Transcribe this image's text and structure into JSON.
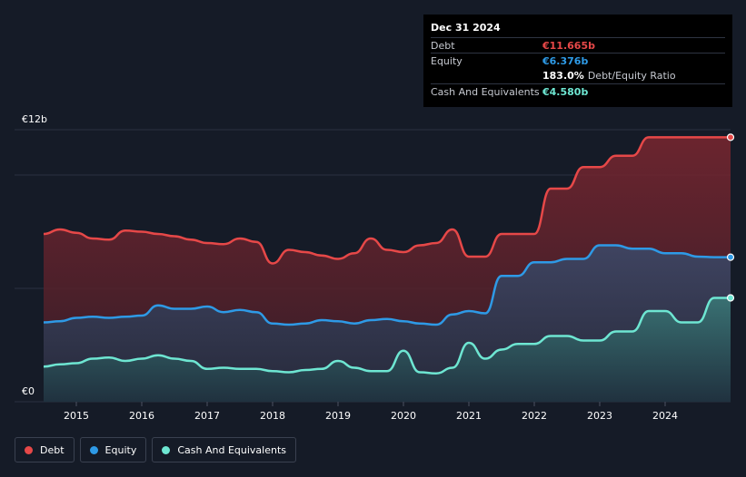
{
  "tooltip": {
    "date": "Dec 31 2024",
    "rows": [
      {
        "label": "Debt",
        "value": "€11.665b",
        "color": "#e64848"
      },
      {
        "label": "Equity",
        "value": "€6.376b",
        "color": "#2e9ae6"
      },
      {
        "label": "",
        "value": "183.0%",
        "suffix": "Debt/Equity Ratio",
        "color": "#ffffff"
      },
      {
        "label": "Cash And Equivalents",
        "value": "€4.580b",
        "color": "#6ee6d2"
      }
    ]
  },
  "legend": [
    {
      "label": "Debt",
      "color": "#e64848"
    },
    {
      "label": "Equity",
      "color": "#2e9ae6"
    },
    {
      "label": "Cash And Equivalents",
      "color": "#6ee6d2"
    }
  ],
  "chart_data": {
    "type": "area",
    "y_axis_labels": [
      "€12b",
      "€0"
    ],
    "ylim": [
      0,
      12
    ],
    "xlim": [
      2014.5,
      2025.0
    ],
    "x_ticks": [
      "2015",
      "2016",
      "2017",
      "2018",
      "2019",
      "2020",
      "2021",
      "2022",
      "2023",
      "2024"
    ],
    "grid": true,
    "legend_position": "bottom-left",
    "series": [
      {
        "name": "Debt",
        "color": "#e64848",
        "x": [
          2014.5,
          2014.75,
          2015.0,
          2015.25,
          2015.5,
          2015.75,
          2016.0,
          2016.25,
          2016.5,
          2016.75,
          2017.0,
          2017.25,
          2017.5,
          2017.75,
          2018.0,
          2018.25,
          2018.5,
          2018.75,
          2019.0,
          2019.25,
          2019.5,
          2019.75,
          2020.0,
          2020.25,
          2020.5,
          2020.75,
          2021.0,
          2021.25,
          2021.5,
          2021.75,
          2022.0,
          2022.25,
          2022.5,
          2022.75,
          2023.0,
          2023.25,
          2023.5,
          2023.75,
          2024.0,
          2024.25,
          2024.5,
          2024.75,
          2025.0
        ],
        "values": [
          7.4,
          7.6,
          7.45,
          7.2,
          7.15,
          7.55,
          7.5,
          7.4,
          7.3,
          7.15,
          7.0,
          6.95,
          7.2,
          7.05,
          6.1,
          6.7,
          6.6,
          6.45,
          6.3,
          6.55,
          7.2,
          6.7,
          6.6,
          6.9,
          7.0,
          7.6,
          6.4,
          6.4,
          7.4,
          7.4,
          7.4,
          9.4,
          9.4,
          10.35,
          10.35,
          10.85,
          10.85,
          11.665,
          11.665,
          11.665,
          11.665,
          11.665,
          11.665
        ],
        "last": 11.665
      },
      {
        "name": "Equity",
        "color": "#2e9ae6",
        "x": [
          2014.5,
          2014.75,
          2015.0,
          2015.25,
          2015.5,
          2015.75,
          2016.0,
          2016.25,
          2016.5,
          2016.75,
          2017.0,
          2017.25,
          2017.5,
          2017.75,
          2018.0,
          2018.25,
          2018.5,
          2018.75,
          2019.0,
          2019.25,
          2019.5,
          2019.75,
          2020.0,
          2020.25,
          2020.5,
          2020.75,
          2021.0,
          2021.25,
          2021.5,
          2021.75,
          2022.0,
          2022.25,
          2022.5,
          2022.75,
          2023.0,
          2023.25,
          2023.5,
          2023.75,
          2024.0,
          2024.25,
          2024.5,
          2024.75,
          2025.0
        ],
        "values": [
          3.5,
          3.55,
          3.7,
          3.75,
          3.7,
          3.75,
          3.8,
          4.25,
          4.1,
          4.1,
          4.2,
          3.95,
          4.05,
          3.95,
          3.45,
          3.4,
          3.45,
          3.6,
          3.55,
          3.45,
          3.6,
          3.65,
          3.55,
          3.45,
          3.4,
          3.85,
          4.0,
          3.9,
          5.55,
          5.55,
          6.15,
          6.15,
          6.3,
          6.3,
          6.9,
          6.9,
          6.75,
          6.75,
          6.55,
          6.55,
          6.4,
          6.376,
          6.376
        ],
        "last": 6.376
      },
      {
        "name": "Cash And Equivalents",
        "color": "#6ee6d2",
        "x": [
          2014.5,
          2014.75,
          2015.0,
          2015.25,
          2015.5,
          2015.75,
          2016.0,
          2016.25,
          2016.5,
          2016.75,
          2017.0,
          2017.25,
          2017.5,
          2017.75,
          2018.0,
          2018.25,
          2018.5,
          2018.75,
          2019.0,
          2019.25,
          2019.5,
          2019.75,
          2020.0,
          2020.25,
          2020.5,
          2020.75,
          2021.0,
          2021.25,
          2021.5,
          2021.75,
          2022.0,
          2022.25,
          2022.5,
          2022.75,
          2023.0,
          2023.25,
          2023.5,
          2023.75,
          2024.0,
          2024.25,
          2024.5,
          2024.75,
          2025.0
        ],
        "values": [
          1.55,
          1.65,
          1.7,
          1.9,
          1.95,
          1.8,
          1.9,
          2.05,
          1.9,
          1.8,
          1.45,
          1.5,
          1.45,
          1.45,
          1.35,
          1.3,
          1.4,
          1.45,
          1.8,
          1.5,
          1.35,
          1.35,
          2.25,
          1.3,
          1.25,
          1.5,
          2.6,
          1.9,
          2.3,
          2.55,
          2.55,
          2.9,
          2.9,
          2.7,
          2.7,
          3.1,
          3.1,
          4.0,
          4.0,
          3.5,
          3.5,
          4.58,
          4.58
        ],
        "last": 4.58
      }
    ]
  }
}
